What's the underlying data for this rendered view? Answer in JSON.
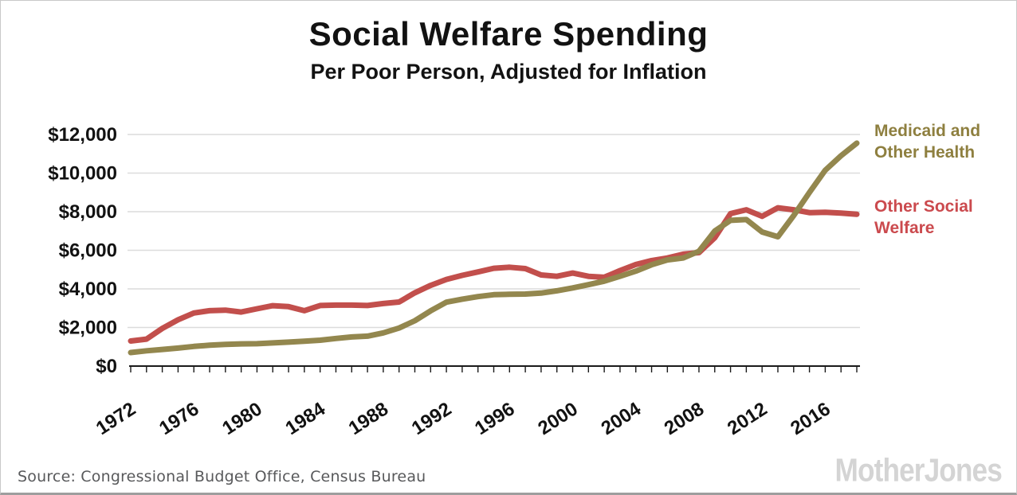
{
  "header": {
    "title": "Social Welfare Spending",
    "subtitle": "Per Poor Person, Adjusted for Inflation"
  },
  "footer": {
    "source": "Source: Congressional Budget Office, Census Bureau",
    "brand": "MotherJones"
  },
  "colors": {
    "medicaid_line": "#93874e",
    "medicaid_text": "#8e7f3f",
    "welfare_line": "#c24f4c",
    "welfare_text": "#cb4a4e",
    "grid": "#dcdcdc",
    "axis": "#1a1a1a",
    "tick_text": "#121212",
    "source_text": "#58595b",
    "brand_gray": "#d4d4d4"
  },
  "chart_data": {
    "type": "line",
    "title": "Social Welfare Spending",
    "subtitle": "Per Poor Person, Adjusted for Inflation",
    "grid": "horizontal",
    "legend_position": "right",
    "xlim": [
      1972,
      2018
    ],
    "ylim": [
      0,
      12000
    ],
    "x_minor_tick_every": 1,
    "x_tick_labels": [
      "1972",
      "1976",
      "1980",
      "1984",
      "1988",
      "1992",
      "1996",
      "2000",
      "2004",
      "2008",
      "2012",
      "2016"
    ],
    "x_tick_values": [
      1972,
      1976,
      1980,
      1984,
      1988,
      1992,
      1996,
      2000,
      2004,
      2008,
      2012,
      2016
    ],
    "y_ticks": [
      {
        "value": 0,
        "label": "$0"
      },
      {
        "value": 2000,
        "label": "$2,000"
      },
      {
        "value": 4000,
        "label": "$4,000"
      },
      {
        "value": 6000,
        "label": "$6,000"
      },
      {
        "value": 8000,
        "label": "$8,000"
      },
      {
        "value": 10000,
        "label": "$10,000"
      },
      {
        "value": 12000,
        "label": "$12,000"
      }
    ],
    "x": [
      1972,
      1973,
      1974,
      1975,
      1976,
      1977,
      1978,
      1979,
      1980,
      1981,
      1982,
      1983,
      1984,
      1985,
      1986,
      1987,
      1988,
      1989,
      1990,
      1991,
      1992,
      1993,
      1994,
      1995,
      1996,
      1997,
      1998,
      1999,
      2000,
      2001,
      2002,
      2003,
      2004,
      2005,
      2006,
      2007,
      2008,
      2009,
      2010,
      2011,
      2012,
      2013,
      2014,
      2015,
      2016,
      2017,
      2018
    ],
    "series": [
      {
        "name": "Other Social Welfare",
        "color": "#c24f4c",
        "values": [
          1300,
          1400,
          1950,
          2400,
          2750,
          2870,
          2900,
          2800,
          2970,
          3130,
          3080,
          2870,
          3140,
          3160,
          3160,
          3140,
          3240,
          3320,
          3800,
          4180,
          4490,
          4700,
          4880,
          5070,
          5120,
          5050,
          4720,
          4650,
          4820,
          4650,
          4600,
          4950,
          5260,
          5470,
          5600,
          5800,
          5880,
          6650,
          7900,
          8100,
          7760,
          8200,
          8100,
          7950,
          7970,
          7930,
          7870
        ]
      },
      {
        "name": "Medicaid and Other Health",
        "color": "#93874e",
        "values": [
          700,
          790,
          860,
          930,
          1020,
          1080,
          1120,
          1150,
          1160,
          1200,
          1240,
          1290,
          1340,
          1430,
          1510,
          1550,
          1720,
          1970,
          2350,
          2860,
          3310,
          3470,
          3600,
          3700,
          3720,
          3730,
          3780,
          3900,
          4050,
          4220,
          4400,
          4650,
          4920,
          5250,
          5500,
          5600,
          5950,
          7000,
          7550,
          7590,
          6950,
          6700,
          7800,
          9000,
          10150,
          10900,
          11550
        ]
      }
    ]
  }
}
